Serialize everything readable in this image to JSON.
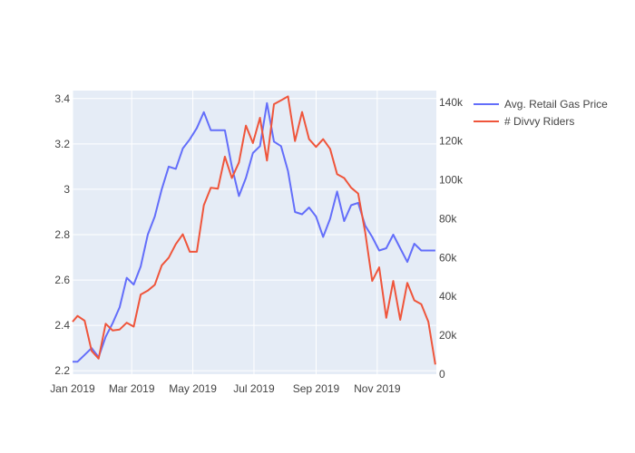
{
  "chart_data": {
    "type": "line",
    "title": "",
    "xlabel": "",
    "ylabel": "",
    "y2label": "",
    "x_ticks": [
      "Jan 2019",
      "Mar 2019",
      "May 2019",
      "Jul 2019",
      "Sep 2019",
      "Nov 2019"
    ],
    "y_ticks": [
      "2.2",
      "2.4",
      "2.6",
      "2.8",
      "3",
      "3.2",
      "3.4"
    ],
    "y2_ticks": [
      "0",
      "20k",
      "40k",
      "60k",
      "80k",
      "100k",
      "120k",
      "140k"
    ],
    "ylim": [
      2.185,
      3.435
    ],
    "y2lim": [
      0,
      146000
    ],
    "xlim": [
      "2019-01-01",
      "2019-12-30"
    ],
    "grid": true,
    "legend_position": "top-right",
    "x": [
      "2019-01-01",
      "2019-01-06",
      "2019-01-13",
      "2019-01-20",
      "2019-01-27",
      "2019-02-03",
      "2019-02-10",
      "2019-02-17",
      "2019-02-24",
      "2019-03-03",
      "2019-03-10",
      "2019-03-17",
      "2019-03-24",
      "2019-03-31",
      "2019-04-07",
      "2019-04-14",
      "2019-04-21",
      "2019-04-28",
      "2019-05-05",
      "2019-05-12",
      "2019-05-19",
      "2019-05-26",
      "2019-06-02",
      "2019-06-09",
      "2019-06-16",
      "2019-06-23",
      "2019-06-30",
      "2019-07-07",
      "2019-07-14",
      "2019-07-21",
      "2019-07-28",
      "2019-08-04",
      "2019-08-11",
      "2019-08-18",
      "2019-08-25",
      "2019-09-01",
      "2019-09-08",
      "2019-09-15",
      "2019-09-22",
      "2019-09-29",
      "2019-10-06",
      "2019-10-13",
      "2019-10-20",
      "2019-10-27",
      "2019-11-03",
      "2019-11-10",
      "2019-11-17",
      "2019-11-24",
      "2019-12-01",
      "2019-12-08",
      "2019-12-15",
      "2019-12-22",
      "2019-12-29"
    ],
    "series": [
      {
        "name": "Avg. Retail Gas Price",
        "color": "#636efa",
        "axis": "y",
        "values": [
          2.24,
          2.24,
          2.27,
          2.3,
          2.26,
          2.35,
          2.41,
          2.48,
          2.61,
          2.58,
          2.66,
          2.8,
          2.88,
          3.0,
          3.1,
          3.09,
          3.18,
          3.22,
          3.27,
          3.34,
          3.26,
          3.26,
          3.26,
          3.1,
          2.97,
          3.05,
          3.16,
          3.19,
          3.38,
          3.21,
          3.19,
          3.08,
          2.9,
          2.89,
          2.92,
          2.88,
          2.79,
          2.87,
          2.99,
          2.86,
          2.93,
          2.94,
          2.84,
          2.79,
          2.73,
          2.74,
          2.8,
          2.74,
          2.68,
          2.76,
          2.73,
          2.73,
          2.73
        ]
      },
      {
        "name": "# Divvy Riders",
        "color": "#ef553b",
        "axis": "y2",
        "values": [
          27000,
          30000,
          27500,
          12000,
          8000,
          26000,
          22500,
          23000,
          26500,
          24500,
          41000,
          43000,
          46000,
          56000,
          60000,
          67000,
          72000,
          63000,
          63000,
          87000,
          96000,
          95500,
          112000,
          101000,
          109000,
          128000,
          119000,
          132000,
          110000,
          139000,
          141000,
          143000,
          120000,
          135000,
          121000,
          117000,
          121000,
          116000,
          103000,
          101000,
          96000,
          93000,
          73000,
          48000,
          55000,
          29000,
          48000,
          28000,
          47000,
          38000,
          36000,
          27000,
          5000
        ]
      }
    ]
  }
}
